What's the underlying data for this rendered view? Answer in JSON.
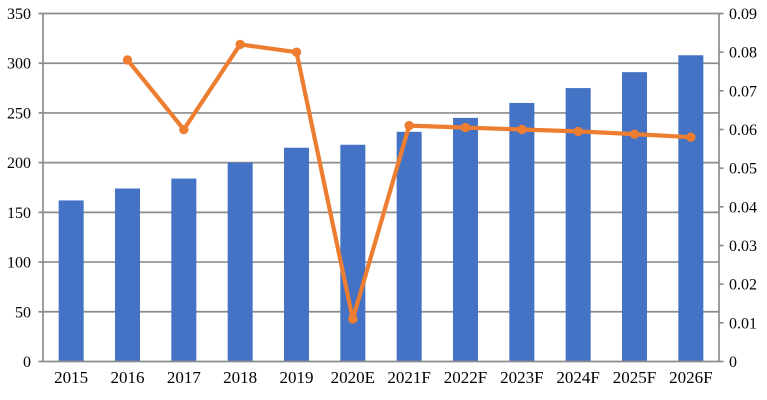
{
  "chart_data": {
    "type": "bar",
    "subtype": "combo-bar-line",
    "title": "",
    "legend": "none",
    "grid": true,
    "categories": [
      "2015",
      "2016",
      "2017",
      "2018",
      "2019",
      "2020E",
      "2021F",
      "2022F",
      "2023F",
      "2024F",
      "2025F",
      "2026F"
    ],
    "series": [
      {
        "name": "value-bars",
        "type": "bar",
        "axis": "left",
        "color": "#4472C4",
        "values": [
          162,
          174,
          184,
          200,
          215,
          218,
          231,
          245,
          260,
          275,
          291,
          308
        ]
      },
      {
        "name": "growth-rate-line",
        "type": "line",
        "axis": "right",
        "color": "#ED7D31",
        "values": [
          null,
          0.078,
          0.06,
          0.082,
          0.08,
          0.011,
          0.061,
          0.0605,
          0.06,
          0.0595,
          0.0588,
          0.058
        ]
      }
    ],
    "left_axis": {
      "min": 0,
      "max": 350,
      "step": 50,
      "tick_labels": [
        "0",
        "50",
        "100",
        "150",
        "200",
        "250",
        "300",
        "350"
      ]
    },
    "right_axis": {
      "min": 0,
      "max": 0.09,
      "step": 0.01,
      "tick_labels": [
        "0",
        "0.01",
        "0.02",
        "0.03",
        "0.04",
        "0.05",
        "0.06",
        "0.07",
        "0.08",
        "0.09"
      ]
    },
    "colors": {
      "bar": "#4472C4",
      "line": "#ED7D31",
      "grid": "#8C8C8C",
      "axis": "#8C8C8C",
      "text": "#000000",
      "background": "#FFFFFF"
    }
  }
}
